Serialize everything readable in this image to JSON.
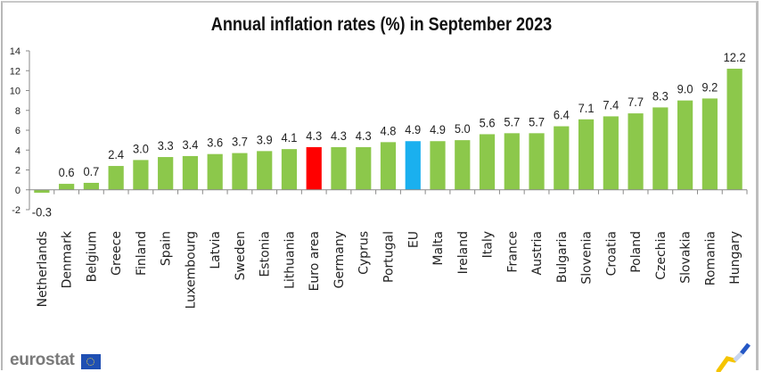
{
  "title": "Annual inflation rates (%)  in September 2023",
  "logo": {
    "text": "eurostat",
    "flag_icon": "eu-flag-icon",
    "corner_icon": "eurostat-swoosh-icon"
  },
  "colors": {
    "default": "#8cc84b",
    "euro_area": "#ff0000",
    "eu": "#1ab0ef"
  },
  "chart_data": {
    "type": "bar",
    "title": "Annual inflation rates (%)  in September 2023",
    "xlabel": "",
    "ylabel": "",
    "ylim": [
      -2,
      14
    ],
    "yticks": [
      "-2",
      "0",
      "2",
      "4",
      "6",
      "8",
      "10",
      "12",
      "14"
    ],
    "grid": false,
    "categories": [
      "Netherlands",
      "Denmark",
      "Belgium",
      "Greece",
      "Finland",
      "Spain",
      "Luxembourg",
      "Latvia",
      "Sweden",
      "Estonia",
      "Lithuania",
      "Euro area",
      "Germany",
      "Cyprus",
      "Portugal",
      "EU",
      "Malta",
      "Ireland",
      "Italy",
      "France",
      "Austria",
      "Bulgaria",
      "Slovenia",
      "Croatia",
      "Poland",
      "Czechia",
      "Slovakia",
      "Romania",
      "Hungary"
    ],
    "values": [
      -0.3,
      0.6,
      0.7,
      2.4,
      3.0,
      3.3,
      3.4,
      3.6,
      3.7,
      3.9,
      4.1,
      4.3,
      4.3,
      4.3,
      4.8,
      4.9,
      4.9,
      5.0,
      5.6,
      5.7,
      5.7,
      6.4,
      7.1,
      7.4,
      7.7,
      8.3,
      9.0,
      9.2,
      12.2
    ],
    "labels": [
      "-0.3",
      "0.6",
      "0.7",
      "2.4",
      "3.0",
      "3.3",
      "3.4",
      "3.6",
      "3.7",
      "3.9",
      "4.1",
      "4.3",
      "4.3",
      "4.3",
      "4.8",
      "4.9",
      "4.9",
      "5.0",
      "5.6",
      "5.7",
      "5.7",
      "6.4",
      "7.1",
      "7.4",
      "7.7",
      "8.3",
      "9.0",
      "9.2",
      "12.2"
    ],
    "highlight": {
      "Euro area": "#ff0000",
      "EU": "#1ab0ef"
    }
  }
}
